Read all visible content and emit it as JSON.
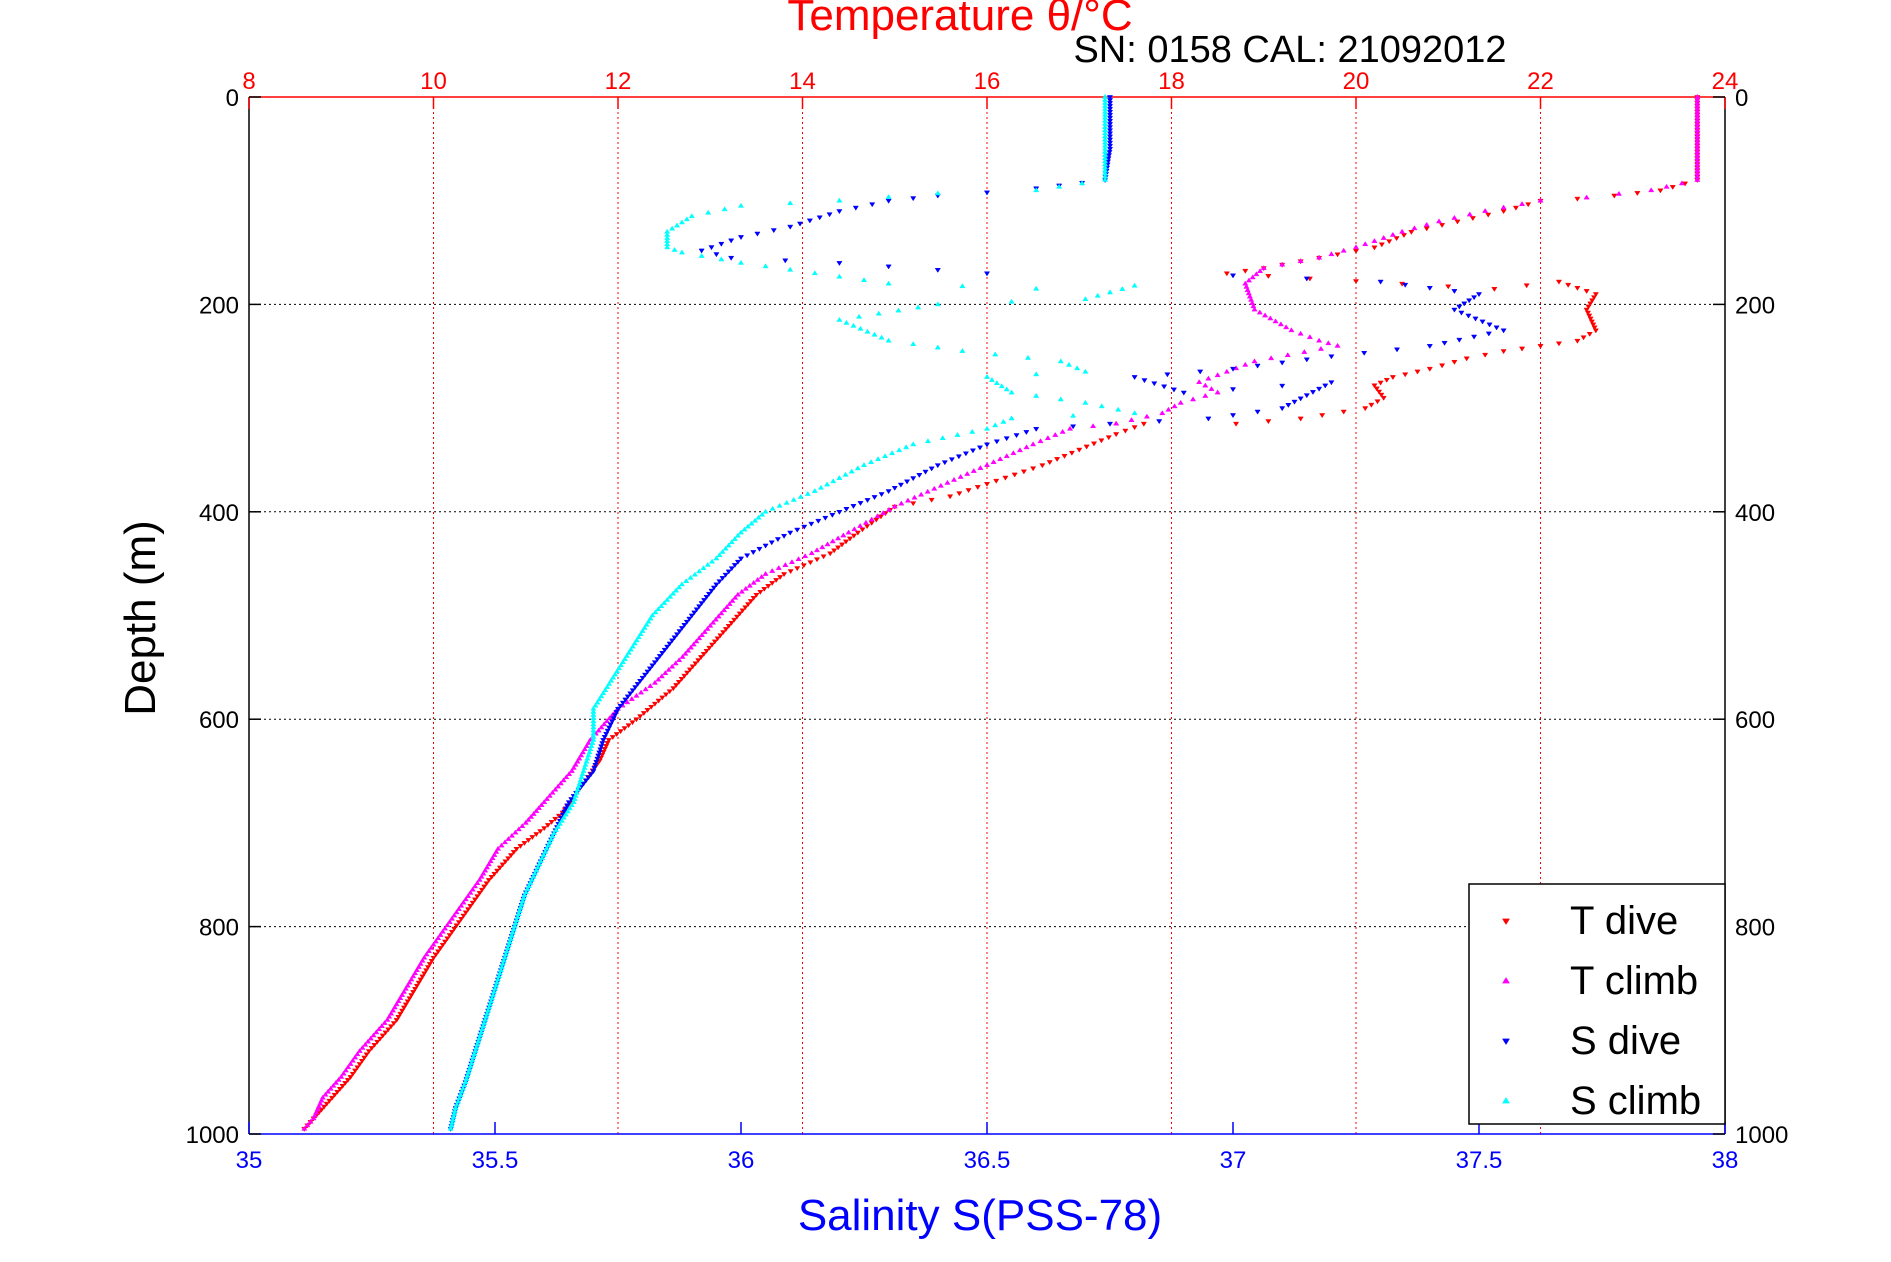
{
  "chart_data": {
    "type": "scatter",
    "title": "Temperature θ/°C",
    "subtitle": "SN: 0158  CAL: 21092012",
    "top_axis": {
      "label": "Temperature θ/°C",
      "range": [
        8,
        24
      ],
      "ticks": [
        8,
        10,
        12,
        14,
        16,
        18,
        20,
        22,
        24
      ],
      "tick_labels": [
        "8",
        "10",
        "12",
        "14",
        "16",
        "18",
        "20",
        "22",
        "24"
      ],
      "color": "#ff0000"
    },
    "bottom_axis": {
      "label": "Salinity S(PSS-78)",
      "range": [
        35,
        38
      ],
      "ticks": [
        35,
        35.5,
        36,
        36.5,
        37,
        37.5,
        38
      ],
      "tick_labels": [
        "35",
        "35.5",
        "36",
        "36.5",
        "37",
        "37.5",
        "38"
      ],
      "color": "#0000ff"
    },
    "y_axis": {
      "label": "Depth (m)",
      "range": [
        0,
        1000
      ],
      "ticks": [
        0,
        200,
        400,
        600,
        800,
        1000
      ],
      "tick_labels": [
        "0",
        "200",
        "400",
        "600",
        "800",
        "1000"
      ],
      "reversed": true,
      "color": "#000000"
    },
    "grid": {
      "vertical": "on (red dotted, temperature ticks)",
      "horizontal": "on (black dotted, depth ticks)"
    },
    "legend": {
      "position": "bottom-right",
      "entries": [
        {
          "label": "T dive",
          "marker": "triangle-down",
          "color": "#ff0000"
        },
        {
          "label": "T climb",
          "marker": "triangle-up",
          "color": "#ff00ff"
        },
        {
          "label": "S dive",
          "marker": "triangle-down",
          "color": "#0000ff"
        },
        {
          "label": "S climb",
          "marker": "triangle-up",
          "color": "#00ffff"
        }
      ]
    },
    "series": [
      {
        "name": "T dive",
        "axis": "temperature",
        "marker": "triangle-down",
        "color": "#ff0000",
        "points": [
          [
            23.7,
            0
          ],
          [
            23.7,
            20
          ],
          [
            23.7,
            50
          ],
          [
            23.7,
            80
          ],
          [
            23.3,
            90
          ],
          [
            22.8,
            95
          ],
          [
            22.4,
            98
          ],
          [
            22.0,
            100
          ],
          [
            21.6,
            110
          ],
          [
            21.1,
            120
          ],
          [
            20.6,
            130
          ],
          [
            20.2,
            145
          ],
          [
            19.6,
            155
          ],
          [
            19.0,
            165
          ],
          [
            18.6,
            170
          ],
          [
            19.5,
            175
          ],
          [
            20.5,
            180
          ],
          [
            21.5,
            185
          ],
          [
            22.2,
            178
          ],
          [
            22.6,
            190
          ],
          [
            22.5,
            205
          ],
          [
            22.6,
            225
          ],
          [
            22.4,
            235
          ],
          [
            22.0,
            240
          ],
          [
            21.6,
            245
          ],
          [
            21.2,
            252
          ],
          [
            20.8,
            262
          ],
          [
            20.4,
            270
          ],
          [
            20.2,
            278
          ],
          [
            20.3,
            290
          ],
          [
            20.1,
            300
          ],
          [
            19.4,
            310
          ],
          [
            18.7,
            315
          ],
          [
            17.7,
            315
          ],
          [
            17.4,
            325
          ],
          [
            17.0,
            340
          ],
          [
            16.6,
            355
          ],
          [
            16.1,
            370
          ],
          [
            15.6,
            385
          ],
          [
            15.0,
            395
          ],
          [
            14.6,
            420
          ],
          [
            14.3,
            440
          ],
          [
            13.8,
            460
          ],
          [
            13.5,
            480
          ],
          [
            13.2,
            510
          ],
          [
            12.9,
            540
          ],
          [
            12.6,
            570
          ],
          [
            12.2,
            600
          ],
          [
            11.9,
            620
          ],
          [
            11.8,
            640
          ],
          [
            11.6,
            665
          ],
          [
            11.4,
            690
          ],
          [
            11.2,
            705
          ],
          [
            10.9,
            725
          ],
          [
            10.6,
            755
          ],
          [
            10.4,
            780
          ],
          [
            10.2,
            805
          ],
          [
            10.0,
            830
          ],
          [
            9.8,
            860
          ],
          [
            9.6,
            890
          ],
          [
            9.3,
            920
          ],
          [
            9.1,
            945
          ],
          [
            8.9,
            965
          ],
          [
            8.7,
            985
          ],
          [
            8.6,
            995
          ]
        ]
      },
      {
        "name": "T climb",
        "axis": "temperature",
        "marker": "triangle-up",
        "color": "#ff00ff",
        "points": [
          [
            23.7,
            0
          ],
          [
            23.7,
            20
          ],
          [
            23.7,
            50
          ],
          [
            23.7,
            80
          ],
          [
            23.2,
            90
          ],
          [
            22.5,
            97
          ],
          [
            22.0,
            100
          ],
          [
            21.4,
            110
          ],
          [
            20.9,
            120
          ],
          [
            20.5,
            130
          ],
          [
            20.0,
            145
          ],
          [
            19.6,
            155
          ],
          [
            19.0,
            165
          ],
          [
            18.8,
            180
          ],
          [
            18.9,
            205
          ],
          [
            19.3,
            225
          ],
          [
            19.6,
            235
          ],
          [
            19.8,
            240
          ],
          [
            18.9,
            255
          ],
          [
            18.6,
            265
          ],
          [
            18.3,
            275
          ],
          [
            18.5,
            285
          ],
          [
            18.1,
            295
          ],
          [
            17.9,
            305
          ],
          [
            17.4,
            315
          ],
          [
            16.9,
            320
          ],
          [
            16.5,
            335
          ],
          [
            16.0,
            355
          ],
          [
            15.5,
            375
          ],
          [
            15.0,
            395
          ],
          [
            14.5,
            420
          ],
          [
            14.1,
            440
          ],
          [
            13.6,
            460
          ],
          [
            13.3,
            480
          ],
          [
            13.0,
            510
          ],
          [
            12.7,
            540
          ],
          [
            12.4,
            565
          ],
          [
            12.0,
            590
          ],
          [
            11.7,
            620
          ],
          [
            11.5,
            650
          ],
          [
            11.2,
            680
          ],
          [
            11.0,
            700
          ],
          [
            10.7,
            725
          ],
          [
            10.5,
            755
          ],
          [
            10.3,
            780
          ],
          [
            10.1,
            805
          ],
          [
            9.9,
            830
          ],
          [
            9.7,
            860
          ],
          [
            9.5,
            890
          ],
          [
            9.2,
            920
          ],
          [
            9.0,
            945
          ],
          [
            8.8,
            965
          ],
          [
            8.7,
            985
          ],
          [
            8.6,
            995
          ]
        ]
      },
      {
        "name": "S dive",
        "axis": "salinity",
        "marker": "triangle-down",
        "color": "#0000ff",
        "points": [
          [
            36.75,
            0
          ],
          [
            36.75,
            20
          ],
          [
            36.75,
            50
          ],
          [
            36.74,
            80
          ],
          [
            36.6,
            88
          ],
          [
            36.5,
            92
          ],
          [
            36.4,
            95
          ],
          [
            36.3,
            100
          ],
          [
            36.2,
            110
          ],
          [
            36.1,
            125
          ],
          [
            36.0,
            135
          ],
          [
            35.92,
            148
          ],
          [
            35.98,
            155
          ],
          [
            36.2,
            160
          ],
          [
            36.5,
            170
          ],
          [
            37.0,
            172
          ],
          [
            37.3,
            178
          ],
          [
            37.5,
            190
          ],
          [
            37.45,
            205
          ],
          [
            37.55,
            225
          ],
          [
            37.4,
            240
          ],
          [
            37.2,
            250
          ],
          [
            37.0,
            262
          ],
          [
            36.8,
            270
          ],
          [
            36.9,
            285
          ],
          [
            37.2,
            275
          ],
          [
            37.1,
            300
          ],
          [
            36.95,
            310
          ],
          [
            36.75,
            315
          ],
          [
            36.6,
            320
          ],
          [
            36.5,
            335
          ],
          [
            36.4,
            355
          ],
          [
            36.3,
            380
          ],
          [
            36.2,
            400
          ],
          [
            36.1,
            420
          ],
          [
            36.0,
            445
          ],
          [
            35.95,
            470
          ],
          [
            35.9,
            500
          ],
          [
            35.85,
            530
          ],
          [
            35.8,
            560
          ],
          [
            35.75,
            590
          ],
          [
            35.72,
            620
          ],
          [
            35.7,
            650
          ],
          [
            35.65,
            680
          ],
          [
            35.62,
            710
          ],
          [
            35.59,
            740
          ],
          [
            35.56,
            770
          ],
          [
            35.54,
            800
          ],
          [
            35.52,
            830
          ],
          [
            35.5,
            860
          ],
          [
            35.48,
            890
          ],
          [
            35.46,
            920
          ],
          [
            35.44,
            950
          ],
          [
            35.42,
            975
          ],
          [
            35.41,
            995
          ]
        ]
      },
      {
        "name": "S climb",
        "axis": "salinity",
        "marker": "triangle-up",
        "color": "#00ffff",
        "points": [
          [
            36.74,
            0
          ],
          [
            36.74,
            20
          ],
          [
            36.74,
            50
          ],
          [
            36.74,
            80
          ],
          [
            36.6,
            90
          ],
          [
            36.4,
            93
          ],
          [
            36.2,
            100
          ],
          [
            36.0,
            105
          ],
          [
            35.9,
            115
          ],
          [
            35.85,
            130
          ],
          [
            35.85,
            145
          ],
          [
            35.88,
            150
          ],
          [
            36.0,
            160
          ],
          [
            36.15,
            170
          ],
          [
            36.3,
            180
          ],
          [
            36.6,
            185
          ],
          [
            36.8,
            182
          ],
          [
            36.7,
            195
          ],
          [
            36.4,
            200
          ],
          [
            36.2,
            215
          ],
          [
            36.3,
            235
          ],
          [
            36.45,
            245
          ],
          [
            36.65,
            255
          ],
          [
            36.7,
            265
          ],
          [
            36.5,
            270
          ],
          [
            36.55,
            285
          ],
          [
            36.7,
            295
          ],
          [
            36.8,
            305
          ],
          [
            36.55,
            310
          ],
          [
            36.5,
            320
          ],
          [
            36.35,
            335
          ],
          [
            36.25,
            355
          ],
          [
            36.15,
            380
          ],
          [
            36.05,
            400
          ],
          [
            36.0,
            420
          ],
          [
            35.95,
            445
          ],
          [
            35.88,
            470
          ],
          [
            35.82,
            500
          ],
          [
            35.78,
            530
          ],
          [
            35.74,
            560
          ],
          [
            35.7,
            590
          ],
          [
            35.7,
            620
          ],
          [
            35.68,
            650
          ],
          [
            35.66,
            680
          ],
          [
            35.62,
            710
          ],
          [
            35.59,
            740
          ],
          [
            35.56,
            770
          ],
          [
            35.54,
            800
          ],
          [
            35.52,
            830
          ],
          [
            35.5,
            860
          ],
          [
            35.48,
            890
          ],
          [
            35.46,
            920
          ],
          [
            35.44,
            950
          ],
          [
            35.42,
            975
          ],
          [
            35.41,
            995
          ]
        ]
      }
    ]
  }
}
